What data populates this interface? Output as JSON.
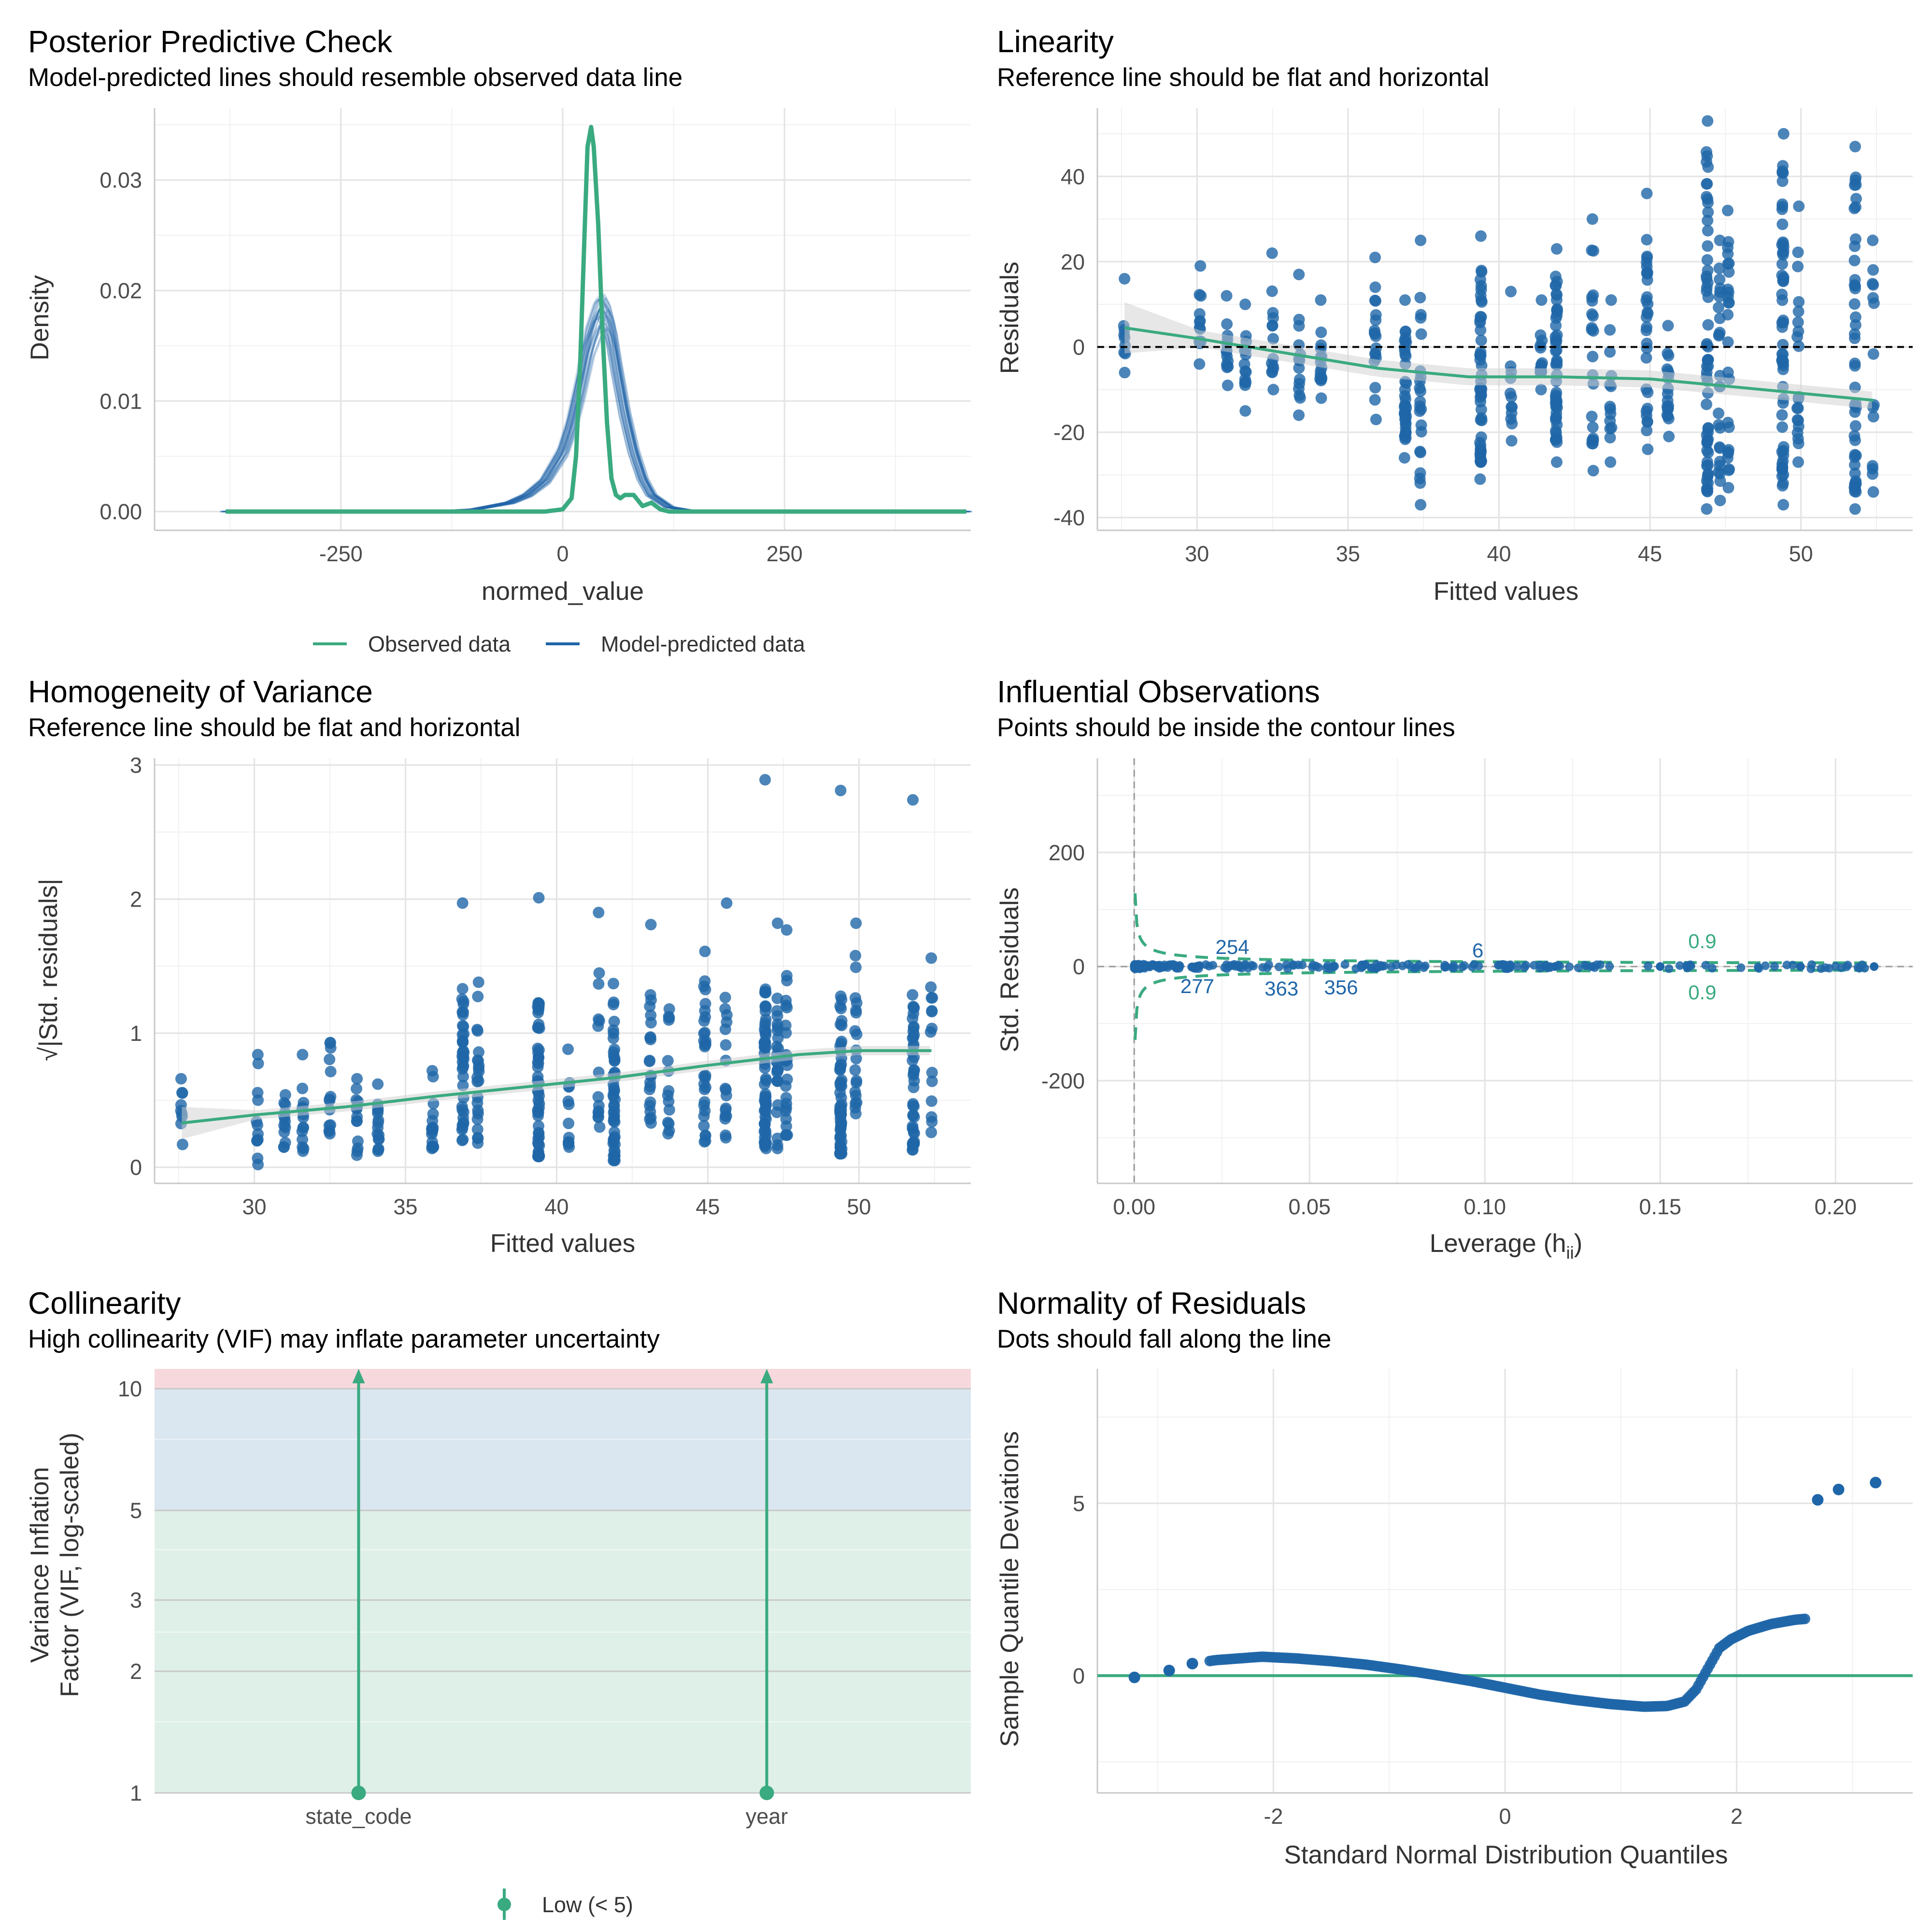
{
  "colors": {
    "observed": "#3aaa80",
    "predicted": "#1f66a8",
    "points": "#1f66a8",
    "fit": "#3aaa80",
    "band": "#d0d0d0",
    "vif_high": "#f7d9dd",
    "vif_mod": "#dae6f0",
    "vif_low": "#dff0e8"
  },
  "chart_data": [
    {
      "id": "ppc",
      "type": "line",
      "title": "Posterior Predictive Check",
      "subtitle": "Model-predicted lines should resemble observed data line",
      "xlabel": "normed_value",
      "ylabel": "Density",
      "xlim": [
        -460,
        460
      ],
      "ylim": [
        -0.0017,
        0.0365
      ],
      "xticks": [
        -250,
        0,
        250
      ],
      "xtick_labels": [
        "-250",
        "0",
        "250"
      ],
      "yticks": [
        0,
        0.01,
        0.02,
        0.03
      ],
      "ytick_labels": [
        "0.00",
        "0.01",
        "0.02",
        "0.03"
      ],
      "legend": {
        "position": "bottom",
        "items": [
          "Observed data",
          "Model-predicted data"
        ]
      },
      "series": [
        {
          "name": "Observed data",
          "x": [
            -380,
            -100,
            -20,
            0,
            10,
            15,
            20,
            25,
            28,
            32,
            35,
            40,
            45,
            50,
            55,
            60,
            65,
            70,
            80,
            90,
            100,
            110,
            120,
            150,
            200,
            300,
            455
          ],
          "y": [
            0,
            0,
            0,
            0.0002,
            0.0012,
            0.005,
            0.014,
            0.026,
            0.033,
            0.0348,
            0.033,
            0.026,
            0.016,
            0.008,
            0.003,
            0.0015,
            0.0012,
            0.0015,
            0.0015,
            0.0005,
            0.0008,
            0.0002,
            0,
            0,
            0,
            0,
            0
          ]
        },
        {
          "name": "Model-predicted data",
          "x": [
            -380,
            -150,
            -100,
            -60,
            -40,
            -20,
            0,
            10,
            20,
            30,
            40,
            45,
            50,
            55,
            60,
            70,
            80,
            90,
            100,
            120,
            150,
            200,
            455
          ],
          "y": [
            0,
            0,
            0.0002,
            0.0008,
            0.0015,
            0.0028,
            0.0055,
            0.008,
            0.0115,
            0.0155,
            0.0178,
            0.0182,
            0.0175,
            0.016,
            0.0135,
            0.009,
            0.0055,
            0.003,
            0.0015,
            0.0004,
            0,
            0,
            0
          ]
        }
      ]
    },
    {
      "id": "lin",
      "type": "scatter",
      "title": "Linearity",
      "subtitle": "Reference line should be flat and horizontal",
      "xlabel": "Fitted values",
      "ylabel": "Residuals",
      "xlim": [
        26.7,
        53.7
      ],
      "ylim": [
        -43,
        56
      ],
      "xticks": [
        30,
        35,
        40,
        45,
        50
      ],
      "xtick_labels": [
        "30",
        "35",
        "40",
        "45",
        "50"
      ],
      "yticks": [
        -40,
        -20,
        0,
        20,
        40
      ],
      "ytick_labels": [
        "-40",
        "-20",
        "0",
        "20",
        "40"
      ],
      "reference_line": 0,
      "fitted_x": [
        27.6,
        30,
        33,
        36,
        39,
        42,
        45,
        48,
        52.4
      ],
      "fitted_y": [
        4.5,
        2,
        -1.5,
        -5,
        -7,
        -7,
        -7.5,
        -9.5,
        -12.5
      ],
      "groups": [
        {
          "x": 27.6,
          "n": 9,
          "lo": -6,
          "hi": 16
        },
        {
          "x": 30.1,
          "n": 12,
          "lo": -4,
          "hi": 19
        },
        {
          "x": 31.0,
          "n": 13,
          "lo": -9,
          "hi": 12
        },
        {
          "x": 31.6,
          "n": 14,
          "lo": -15,
          "hi": 10
        },
        {
          "x": 32.5,
          "n": 14,
          "lo": -10,
          "hi": 22
        },
        {
          "x": 33.4,
          "n": 14,
          "lo": -16,
          "hi": 17
        },
        {
          "x": 34.1,
          "n": 15,
          "lo": -12,
          "hi": 11
        },
        {
          "x": 35.9,
          "n": 18,
          "lo": -17,
          "hi": 21
        },
        {
          "x": 36.9,
          "n": 40,
          "lo": -26,
          "hi": 11
        },
        {
          "x": 37.4,
          "n": 22,
          "lo": -37,
          "hi": 25
        },
        {
          "x": 39.4,
          "n": 55,
          "lo": -31,
          "hi": 26
        },
        {
          "x": 40.4,
          "n": 12,
          "lo": -22,
          "hi": 13
        },
        {
          "x": 41.4,
          "n": 14,
          "lo": -10,
          "hi": 11
        },
        {
          "x": 41.9,
          "n": 50,
          "lo": -27,
          "hi": 23
        },
        {
          "x": 43.1,
          "n": 22,
          "lo": -29,
          "hi": 30
        },
        {
          "x": 43.7,
          "n": 14,
          "lo": -27,
          "hi": 11
        },
        {
          "x": 44.9,
          "n": 30,
          "lo": -24,
          "hi": 36
        },
        {
          "x": 45.6,
          "n": 18,
          "lo": -21,
          "hi": 5
        },
        {
          "x": 46.9,
          "n": 60,
          "lo": -38,
          "hi": 53
        },
        {
          "x": 47.3,
          "n": 25,
          "lo": -36,
          "hi": 25
        },
        {
          "x": 47.6,
          "n": 25,
          "lo": -33,
          "hi": 32
        },
        {
          "x": 49.4,
          "n": 60,
          "lo": -37,
          "hi": 50
        },
        {
          "x": 49.9,
          "n": 20,
          "lo": -27,
          "hi": 33
        },
        {
          "x": 51.8,
          "n": 45,
          "lo": -38,
          "hi": 47
        },
        {
          "x": 52.4,
          "n": 14,
          "lo": -34,
          "hi": 25
        }
      ]
    },
    {
      "id": "hov",
      "type": "scatter",
      "title": "Homogeneity of Variance",
      "subtitle": "Reference line should be flat and horizontal",
      "xlabel": "Fitted values",
      "ylabel": "√|Std. residuals|",
      "xlim": [
        26.7,
        53.7
      ],
      "ylim": [
        -0.12,
        3.05
      ],
      "xticks": [
        30,
        35,
        40,
        45,
        50
      ],
      "xtick_labels": [
        "30",
        "35",
        "40",
        "45",
        "50"
      ],
      "yticks": [
        0,
        1,
        2,
        3
      ],
      "ytick_labels": [
        "0",
        "1",
        "2",
        "3"
      ],
      "fitted_x": [
        27.6,
        30,
        33,
        36,
        39,
        42,
        45,
        48,
        50,
        52.4
      ],
      "fitted_y": [
        0.33,
        0.39,
        0.45,
        0.53,
        0.6,
        0.67,
        0.76,
        0.84,
        0.87,
        0.87
      ],
      "groups": [
        {
          "x": 27.6,
          "n": 9,
          "lo": 0.17,
          "hi": 0.66
        },
        {
          "x": 30.1,
          "n": 12,
          "lo": 0.02,
          "hi": 0.84
        },
        {
          "x": 31.0,
          "n": 13,
          "lo": 0.15,
          "hi": 0.54
        },
        {
          "x": 31.6,
          "n": 14,
          "lo": 0.12,
          "hi": 0.84
        },
        {
          "x": 32.5,
          "n": 14,
          "lo": 0.25,
          "hi": 0.93
        },
        {
          "x": 33.4,
          "n": 14,
          "lo": 0.09,
          "hi": 0.66
        },
        {
          "x": 34.1,
          "n": 15,
          "lo": 0.12,
          "hi": 0.62
        },
        {
          "x": 35.9,
          "n": 18,
          "lo": 0.14,
          "hi": 0.72
        },
        {
          "x": 36.9,
          "n": 40,
          "lo": 0.2,
          "hi": 1.97
        },
        {
          "x": 37.4,
          "n": 22,
          "lo": 0.18,
          "hi": 1.38
        },
        {
          "x": 39.4,
          "n": 55,
          "lo": 0.08,
          "hi": 2.01
        },
        {
          "x": 40.4,
          "n": 12,
          "lo": 0.15,
          "hi": 0.88
        },
        {
          "x": 41.4,
          "n": 14,
          "lo": 0.3,
          "hi": 1.9
        },
        {
          "x": 41.9,
          "n": 50,
          "lo": 0.05,
          "hi": 1.37
        },
        {
          "x": 43.1,
          "n": 22,
          "lo": 0.33,
          "hi": 1.81
        },
        {
          "x": 43.7,
          "n": 14,
          "lo": 0.25,
          "hi": 1.18
        },
        {
          "x": 44.9,
          "n": 30,
          "lo": 0.19,
          "hi": 1.61
        },
        {
          "x": 45.6,
          "n": 18,
          "lo": 0.22,
          "hi": 1.97
        },
        {
          "x": 46.9,
          "n": 60,
          "lo": 0.14,
          "hi": 2.89
        },
        {
          "x": 47.3,
          "n": 25,
          "lo": 0.14,
          "hi": 1.82
        },
        {
          "x": 47.6,
          "n": 25,
          "lo": 0.24,
          "hi": 1.77
        },
        {
          "x": 49.4,
          "n": 60,
          "lo": 0.1,
          "hi": 2.81
        },
        {
          "x": 49.9,
          "n": 20,
          "lo": 0.4,
          "hi": 1.82
        },
        {
          "x": 51.8,
          "n": 45,
          "lo": 0.13,
          "hi": 2.74
        },
        {
          "x": 52.4,
          "n": 14,
          "lo": 0.26,
          "hi": 1.56
        }
      ]
    },
    {
      "id": "inf",
      "type": "scatter",
      "title": "Influential Observations",
      "subtitle": "Points should be inside the contour lines",
      "xlabel": "Leverage (h",
      "xlabel_sub": "ii",
      "xlabel_end": ")",
      "ylabel": "Std. Residuals",
      "xlim": [
        -0.0105,
        0.222
      ],
      "ylim": [
        -380,
        365
      ],
      "xticks": [
        0,
        0.05,
        0.1,
        0.15,
        0.2
      ],
      "xtick_labels": [
        "0.00",
        "0.05",
        "0.10",
        "0.15",
        "0.20"
      ],
      "yticks": [
        -200,
        0,
        200
      ],
      "ytick_labels": [
        "-200",
        "0",
        "200"
      ],
      "contour_label": "0.9",
      "labeled_points": [
        {
          "label": "254",
          "x": 0.028,
          "y": 12
        },
        {
          "label": "277",
          "x": 0.018,
          "y": -6
        },
        {
          "label": "363",
          "x": 0.042,
          "y": -10
        },
        {
          "label": "356",
          "x": 0.059,
          "y": -8
        },
        {
          "label": "6",
          "x": 0.098,
          "y": 6
        }
      ],
      "points_xmax": 0.211
    },
    {
      "id": "col",
      "type": "scatter",
      "title": "Collinearity",
      "subtitle": "High collinearity (VIF) may inflate parameter uncertainty",
      "xlabel": "",
      "ylabel_lines": [
        "Variance Inflation",
        "Factor (VIF, log-scaled)"
      ],
      "yscale": "log",
      "ylim": [
        1,
        11.2
      ],
      "yticks": [
        1,
        2,
        3,
        5,
        10
      ],
      "ytick_labels": [
        "1",
        "2",
        "3",
        "5",
        "10"
      ],
      "categories": [
        "state_code",
        "year"
      ],
      "values": [
        1,
        1
      ],
      "legend": {
        "position": "bottom",
        "items": [
          "Low (< 5)"
        ]
      }
    },
    {
      "id": "qq",
      "type": "scatter",
      "title": "Normality of Residuals",
      "subtitle": "Dots should fall along the line",
      "xlabel": "Standard Normal Distribution Quantiles",
      "ylabel": "Sample Quantile Deviations",
      "xlim": [
        -3.52,
        3.52
      ],
      "ylim": [
        -3.4,
        8.9
      ],
      "xticks": [
        -2,
        0,
        2
      ],
      "xtick_labels": [
        "-2",
        "0",
        "2"
      ],
      "yticks": [
        0,
        5
      ],
      "ytick_labels": [
        "0",
        "5"
      ],
      "reference_line": 0,
      "curve_x": [
        -3.2,
        -2.9,
        -2.7,
        -2.5,
        -2.3,
        -2.1,
        -1.8,
        -1.5,
        -1.2,
        -0.9,
        -0.6,
        -0.3,
        0,
        0.3,
        0.6,
        0.9,
        1.2,
        1.4,
        1.55,
        1.65,
        1.75,
        1.85,
        1.95,
        2.1,
        2.3,
        2.5,
        2.6
      ],
      "curve_y": [
        -0.05,
        0.15,
        0.35,
        0.45,
        0.5,
        0.55,
        0.5,
        0.42,
        0.32,
        0.18,
        0.02,
        -0.15,
        -0.35,
        -0.55,
        -0.7,
        -0.82,
        -0.9,
        -0.88,
        -0.75,
        -0.4,
        0.2,
        0.8,
        1.05,
        1.3,
        1.5,
        1.62,
        1.65
      ],
      "outliers_x": [
        2.7,
        2.88,
        3.2
      ],
      "outliers_y": [
        5.1,
        5.4,
        5.6
      ]
    }
  ]
}
